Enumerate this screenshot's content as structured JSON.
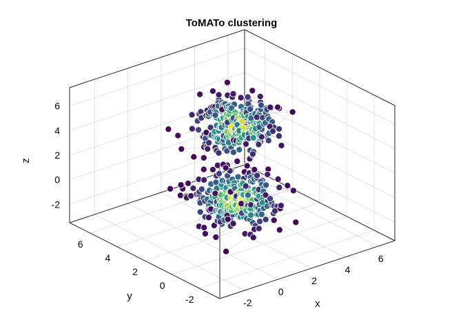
{
  "chart_data": {
    "type": "scatter",
    "projection": "3d",
    "title": "ToMATo clustering",
    "xlabel": "x",
    "ylabel": "y",
    "zlabel": "z",
    "xlim": [
      -3.5,
      7
    ],
    "ylim": [
      -3.5,
      7.5
    ],
    "zlim": [
      -3.5,
      7.5
    ],
    "xticks": [
      -2,
      0,
      2,
      4,
      6
    ],
    "yticks": [
      -2,
      0,
      2,
      4,
      6
    ],
    "zticks": [
      -2,
      0,
      2,
      4,
      6
    ],
    "grid": true,
    "legend": "none",
    "point_edges": "k-nearest-neighbour graph",
    "colormap": "viridis",
    "clusters": [
      {
        "center": [
          2,
          2,
          5
        ],
        "spread": 1.0,
        "count": 300,
        "density_color_range": [
          0.0,
          1.0
        ]
      },
      {
        "center": [
          2,
          2,
          -1
        ],
        "spread": 1.0,
        "count": 300,
        "density_color_range": [
          0.0,
          1.0
        ]
      }
    ],
    "colors": {
      "low": "#440154",
      "mid_low": "#3b528b",
      "mid": "#21918c",
      "mid_high": "#5ec962",
      "high": "#fde725",
      "axis": "#262626",
      "grid": "#dcdcdc"
    }
  }
}
